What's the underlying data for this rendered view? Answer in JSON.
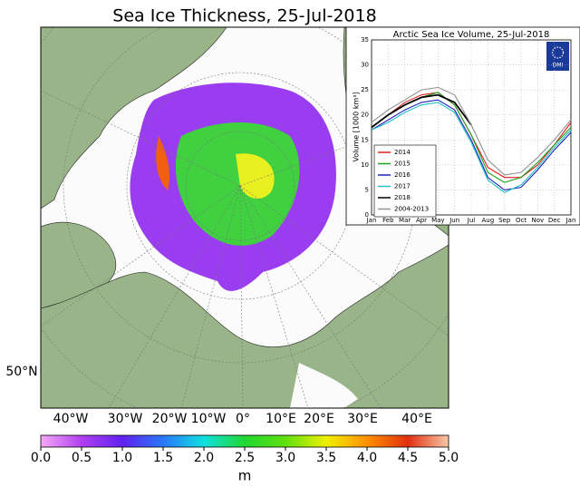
{
  "map": {
    "title": "Sea Ice Thickness, 25-Jul-2018",
    "lat_label": "50°N",
    "lon_labels": [
      "40°W",
      "30°W",
      "20°W",
      "10°W",
      "0°",
      "10°E",
      "20°E",
      "30°E",
      "40°E"
    ],
    "colorbar": {
      "ticks": [
        {
          "value": 0,
          "label": "0.0"
        },
        0.5,
        {
          "value": 1,
          "label": "1.0"
        },
        1.5,
        {
          "value": 2,
          "label": "2.0"
        },
        2.5,
        {
          "value": 3,
          "label": "3.0"
        },
        3.5,
        {
          "value": 4,
          "label": "4.0"
        },
        4.5,
        {
          "value": 5,
          "label": "5.0"
        }
      ],
      "lim": [
        0,
        5
      ],
      "label": "m"
    }
  },
  "chart_data": {
    "type": "line",
    "title": "Arctic Sea Ice Volume, 25-Jul-2018",
    "ylabel": "Volume [1000 km³]",
    "logo": "DMI",
    "categories": [
      "Jan",
      "Feb",
      "Mar",
      "Apr",
      "May",
      "Jun",
      "Jul",
      "Aug",
      "Sep",
      "Oct",
      "Nov",
      "Dec",
      "Jan"
    ],
    "ylim": [
      0,
      35
    ],
    "yticks": [
      0,
      5,
      10,
      15,
      20,
      25,
      30,
      35
    ],
    "grid": true,
    "legend": "lower left",
    "series": [
      {
        "name": "2014",
        "color": "#e02020",
        "values": [
          17.5,
          20,
          22.5,
          24,
          24.5,
          22,
          16,
          9.5,
          7.5,
          7.5,
          10,
          14,
          18.5
        ]
      },
      {
        "name": "2015",
        "color": "#20a020",
        "values": [
          17.5,
          20,
          22,
          23.5,
          24.5,
          22,
          16,
          8.5,
          6.5,
          7.5,
          10.5,
          14,
          17.5
        ]
      },
      {
        "name": "2016",
        "color": "#2020c0",
        "values": [
          17,
          19,
          21,
          22.5,
          23,
          21,
          15,
          7.5,
          5,
          5.5,
          9,
          13,
          16.5
        ]
      },
      {
        "name": "2017",
        "color": "#20c0c0",
        "values": [
          17,
          18.5,
          20.5,
          22,
          22.5,
          20.5,
          14.5,
          7,
          4.5,
          6,
          9.5,
          13.5,
          17
        ]
      },
      {
        "name": "2018",
        "color": "#000000",
        "values": [
          17.5,
          20,
          22,
          23.5,
          24,
          22.5,
          18,
          null,
          null,
          null,
          null,
          null,
          null
        ]
      },
      {
        "name": "2004-2013",
        "color": "#909090",
        "values": [
          18.5,
          21,
          23,
          25,
          25.5,
          24,
          18,
          11,
          8,
          8.5,
          11.5,
          15,
          19
        ]
      }
    ]
  }
}
